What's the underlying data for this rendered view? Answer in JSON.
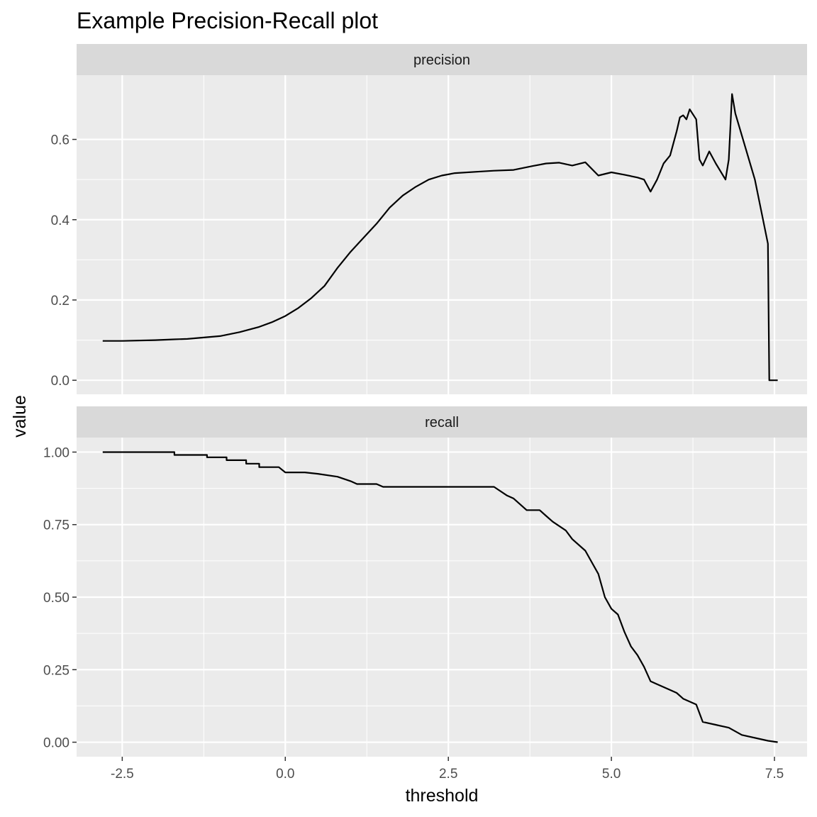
{
  "chart_data": {
    "type": "line",
    "title": "Example Precision-Recall plot",
    "xlabel": "threshold",
    "ylabel": "value",
    "x_ticks": [
      "-2.5",
      "0.0",
      "2.5",
      "5.0",
      "7.5"
    ],
    "x_tick_values": [
      -2.5,
      0,
      2.5,
      5,
      7.5
    ],
    "xlim": [
      -3.2,
      8.0
    ],
    "grid": true,
    "colors": {
      "panel_bg": "#ebebeb",
      "strip_bg": "#d9d9d9",
      "grid": "#ffffff",
      "line": "#000000"
    },
    "facets": [
      {
        "name": "precision",
        "ylim": [
          -0.035,
          0.76
        ],
        "y_ticks": [
          "0.0",
          "0.2",
          "0.4",
          "0.6"
        ],
        "y_tick_values": [
          0,
          0.2,
          0.4,
          0.6
        ],
        "points": [
          [
            -2.8,
            0.098
          ],
          [
            -2.5,
            0.098
          ],
          [
            -2.0,
            0.1
          ],
          [
            -1.7,
            0.102
          ],
          [
            -1.5,
            0.103
          ],
          [
            -1.0,
            0.11
          ],
          [
            -0.7,
            0.12
          ],
          [
            -0.4,
            0.133
          ],
          [
            -0.2,
            0.145
          ],
          [
            0.0,
            0.16
          ],
          [
            0.2,
            0.18
          ],
          [
            0.4,
            0.205
          ],
          [
            0.6,
            0.235
          ],
          [
            0.8,
            0.28
          ],
          [
            1.0,
            0.32
          ],
          [
            1.2,
            0.355
          ],
          [
            1.4,
            0.39
          ],
          [
            1.6,
            0.43
          ],
          [
            1.8,
            0.46
          ],
          [
            2.0,
            0.482
          ],
          [
            2.2,
            0.5
          ],
          [
            2.4,
            0.51
          ],
          [
            2.6,
            0.516
          ],
          [
            3.0,
            0.52
          ],
          [
            3.2,
            0.522
          ],
          [
            3.5,
            0.524
          ],
          [
            3.8,
            0.534
          ],
          [
            4.0,
            0.54
          ],
          [
            4.2,
            0.542
          ],
          [
            4.4,
            0.535
          ],
          [
            4.6,
            0.543
          ],
          [
            4.8,
            0.51
          ],
          [
            5.0,
            0.518
          ],
          [
            5.2,
            0.512
          ],
          [
            5.4,
            0.505
          ],
          [
            5.5,
            0.5
          ],
          [
            5.6,
            0.47
          ],
          [
            5.7,
            0.5
          ],
          [
            5.8,
            0.54
          ],
          [
            5.9,
            0.56
          ],
          [
            6.0,
            0.62
          ],
          [
            6.05,
            0.655
          ],
          [
            6.1,
            0.66
          ],
          [
            6.15,
            0.65
          ],
          [
            6.2,
            0.675
          ],
          [
            6.3,
            0.65
          ],
          [
            6.35,
            0.55
          ],
          [
            6.4,
            0.535
          ],
          [
            6.5,
            0.57
          ],
          [
            6.6,
            0.54
          ],
          [
            6.75,
            0.5
          ],
          [
            6.8,
            0.55
          ],
          [
            6.85,
            0.713
          ],
          [
            6.9,
            0.665
          ],
          [
            7.2,
            0.5
          ],
          [
            7.4,
            0.34
          ],
          [
            7.42,
            0.0
          ],
          [
            7.55,
            0.0
          ]
        ]
      },
      {
        "name": "recall",
        "ylim": [
          -0.05,
          1.05
        ],
        "y_ticks": [
          "0.00",
          "0.25",
          "0.50",
          "0.75",
          "1.00"
        ],
        "y_tick_values": [
          0,
          0.25,
          0.5,
          0.75,
          1.0
        ],
        "points": [
          [
            -2.8,
            1.0
          ],
          [
            -1.7,
            1.0
          ],
          [
            -1.7,
            0.99
          ],
          [
            -1.2,
            0.99
          ],
          [
            -1.2,
            0.982
          ],
          [
            -0.9,
            0.982
          ],
          [
            -0.9,
            0.972
          ],
          [
            -0.6,
            0.972
          ],
          [
            -0.6,
            0.96
          ],
          [
            -0.4,
            0.96
          ],
          [
            -0.4,
            0.948
          ],
          [
            -0.1,
            0.948
          ],
          [
            0.0,
            0.93
          ],
          [
            0.3,
            0.93
          ],
          [
            0.5,
            0.925
          ],
          [
            0.8,
            0.915
          ],
          [
            1.0,
            0.9
          ],
          [
            1.1,
            0.89
          ],
          [
            1.4,
            0.89
          ],
          [
            1.5,
            0.88
          ],
          [
            3.2,
            0.88
          ],
          [
            3.4,
            0.85
          ],
          [
            3.5,
            0.84
          ],
          [
            3.7,
            0.8
          ],
          [
            3.9,
            0.8
          ],
          [
            4.0,
            0.78
          ],
          [
            4.1,
            0.76
          ],
          [
            4.3,
            0.73
          ],
          [
            4.4,
            0.7
          ],
          [
            4.6,
            0.66
          ],
          [
            4.8,
            0.58
          ],
          [
            4.9,
            0.5
          ],
          [
            5.0,
            0.46
          ],
          [
            5.1,
            0.44
          ],
          [
            5.2,
            0.38
          ],
          [
            5.3,
            0.33
          ],
          [
            5.4,
            0.3
          ],
          [
            5.5,
            0.26
          ],
          [
            5.6,
            0.21
          ],
          [
            5.7,
            0.2
          ],
          [
            5.9,
            0.18
          ],
          [
            6.0,
            0.17
          ],
          [
            6.1,
            0.15
          ],
          [
            6.3,
            0.13
          ],
          [
            6.4,
            0.07
          ],
          [
            6.6,
            0.06
          ],
          [
            6.8,
            0.05
          ],
          [
            7.0,
            0.025
          ],
          [
            7.4,
            0.005
          ],
          [
            7.55,
            0.0
          ]
        ]
      }
    ]
  }
}
